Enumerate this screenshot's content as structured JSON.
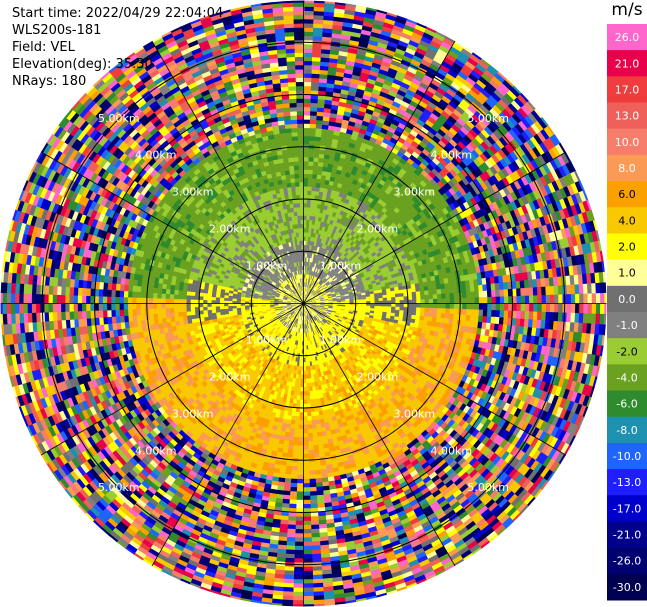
{
  "header": {
    "start_time": "Start time: 2022/04/29 22:04:04",
    "instrument": "WLS200s-181",
    "field": "Field: VEL",
    "elevation": "Elevation(deg): 35.30",
    "nrays": "NRays: 180"
  },
  "colorbar": {
    "unit": "m/s",
    "levels": [
      {
        "label": "26.0",
        "color": "#ff66cc"
      },
      {
        "label": "21.0",
        "color": "#e8004a"
      },
      {
        "label": "17.0",
        "color": "#f03c3c"
      },
      {
        "label": "13.0",
        "color": "#f0605a"
      },
      {
        "label": "10.0",
        "color": "#f57d6a"
      },
      {
        "label": "8.0",
        "color": "#fb9a55"
      },
      {
        "label": "6.0",
        "color": "#fca000"
      },
      {
        "label": "4.0",
        "color": "#f8c800"
      },
      {
        "label": "2.0",
        "color": "#ffff00"
      },
      {
        "label": "1.0",
        "color": "#ffff99"
      },
      {
        "label": "0.0",
        "color": "#707070"
      },
      {
        "label": "-1.0",
        "color": "#808080"
      },
      {
        "label": "-2.0",
        "color": "#9acd32"
      },
      {
        "label": "-4.0",
        "color": "#6aa121"
      },
      {
        "label": "-6.0",
        "color": "#2e8b2e"
      },
      {
        "label": "-8.0",
        "color": "#1e90b0"
      },
      {
        "label": "-10.0",
        "color": "#1e64ff"
      },
      {
        "label": "-13.0",
        "color": "#1e1eff"
      },
      {
        "label": "-17.0",
        "color": "#0000cd"
      },
      {
        "label": "-21.0",
        "color": "#00008b"
      },
      {
        "label": "-26.0",
        "color": "#000070"
      },
      {
        "label": "-30.0",
        "color": "#000050"
      }
    ]
  },
  "chart_data": {
    "type": "heatmap",
    "projection": "polar-ppi",
    "nrays": 180,
    "range_rings": [
      {
        "range_km": 1,
        "label": "1.00km"
      },
      {
        "range_km": 2,
        "label": "2.00km"
      },
      {
        "range_km": 3,
        "label": "3.00km"
      },
      {
        "range_km": 4,
        "label": "4.00km"
      },
      {
        "range_km": 5,
        "label": "5.00km"
      }
    ],
    "max_range_km": 5.8,
    "spokes_deg": [
      0,
      30,
      60,
      90,
      120,
      150,
      180,
      210,
      240,
      270,
      300,
      330
    ],
    "zones": [
      {
        "r0_km": 0.0,
        "r1_km": 0.5,
        "pattern": "mixed-yellow-gray",
        "values": [
          0.0,
          2.0,
          1.0,
          -1.0
        ]
      },
      {
        "r0_km": 0.5,
        "r1_km": 1.2,
        "pattern": "yellow-south-gray-north",
        "values": [
          2.0,
          4.0,
          0.0,
          -2.0
        ]
      },
      {
        "r0_km": 1.2,
        "r1_km": 2.2,
        "pattern": "green-north-orange-south",
        "values": [
          -4.0,
          -6.0,
          2.0,
          4.0,
          6.0
        ]
      },
      {
        "r0_km": 2.2,
        "r1_km": 3.3,
        "pattern": "darkgreen-north-orange-south",
        "values": [
          -4.0,
          -6.0,
          4.0,
          6.0
        ]
      },
      {
        "r0_km": 3.3,
        "r1_km": 5.8,
        "pattern": "noise",
        "values": "all"
      }
    ]
  }
}
